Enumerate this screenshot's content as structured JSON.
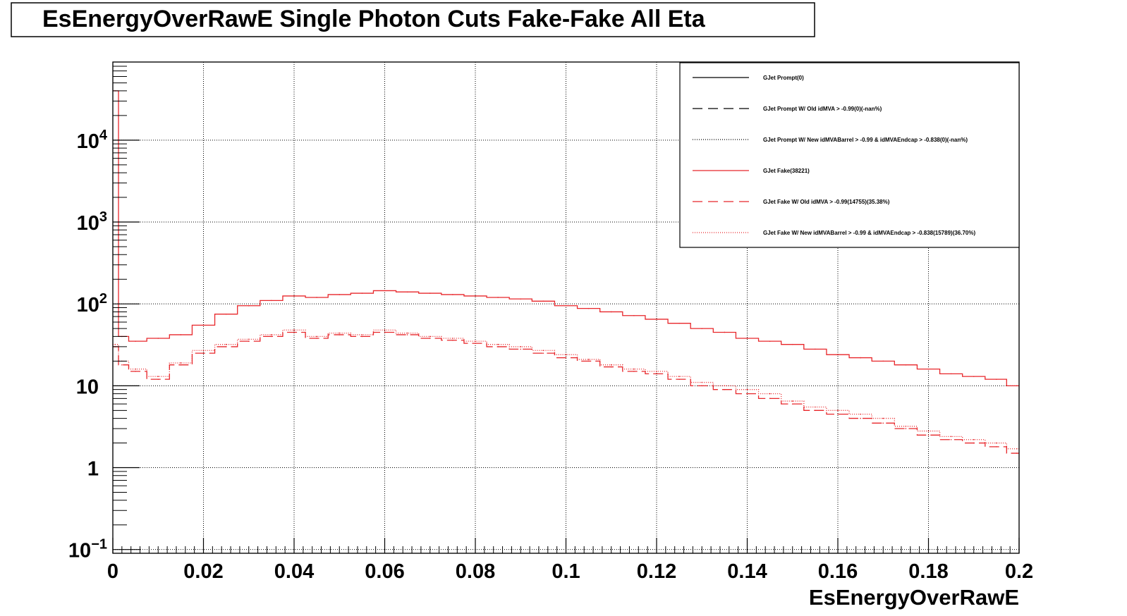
{
  "chart_data": {
    "type": "line",
    "title": "EsEnergyOverRawE Single Photon Cuts Fake-Fake All Eta",
    "xlabel": "EsEnergyOverRawE",
    "ylabel": "",
    "xlim": [
      0,
      0.2
    ],
    "ylim": [
      0.09,
      90000
    ],
    "y_scale": "log",
    "grid": true,
    "legend_position": "top-right",
    "x_tick_labels": [
      "0",
      "0.02",
      "0.04",
      "0.06",
      "0.08",
      "0.1",
      "0.12",
      "0.14",
      "0.16",
      "0.18",
      "0.2"
    ],
    "y_tick_labels": [
      {
        "value": 0.1,
        "base": "10",
        "exp": "−1"
      },
      {
        "value": 1,
        "base": "1",
        "exp": ""
      },
      {
        "value": 10,
        "base": "10",
        "exp": ""
      },
      {
        "value": 100,
        "base": "10",
        "exp": "2"
      },
      {
        "value": 1000,
        "base": "10",
        "exp": "3"
      },
      {
        "value": 10000,
        "base": "10",
        "exp": "4"
      }
    ],
    "colors": {
      "prompt": "#000000",
      "fake": "#e8262a"
    },
    "series": [
      {
        "name": "GJet Prompt(0)",
        "style": "solid",
        "color": "#000000",
        "x": [],
        "values": []
      },
      {
        "name": "GJet Prompt W/ Old idMVA > -0.99(0)(-nan%)",
        "style": "dashed",
        "color": "#000000",
        "x": [],
        "values": []
      },
      {
        "name": "GJet Prompt W/ New idMVABarrel > -0.99 & idMVAEndcap > -0.838(0)(-nan%)",
        "style": "dotted",
        "color": "#000000",
        "x": [],
        "values": []
      },
      {
        "name": "GJet Fake(38221)",
        "style": "solid",
        "color": "#e8262a",
        "x": [
          0.0005,
          0.002,
          0.005,
          0.01,
          0.015,
          0.02,
          0.025,
          0.03,
          0.035,
          0.04,
          0.045,
          0.05,
          0.055,
          0.06,
          0.065,
          0.07,
          0.075,
          0.08,
          0.085,
          0.09,
          0.095,
          0.1,
          0.105,
          0.11,
          0.115,
          0.12,
          0.125,
          0.13,
          0.135,
          0.14,
          0.145,
          0.15,
          0.155,
          0.16,
          0.165,
          0.17,
          0.175,
          0.18,
          0.185,
          0.19,
          0.195,
          0.1995
        ],
        "values": [
          40000,
          40,
          35,
          38,
          42,
          55,
          75,
          95,
          110,
          125,
          120,
          130,
          135,
          145,
          140,
          135,
          130,
          125,
          120,
          115,
          108,
          95,
          88,
          80,
          72,
          65,
          58,
          50,
          45,
          38,
          35,
          32,
          28,
          24,
          22,
          20,
          18,
          16,
          14,
          13,
          12,
          10
        ]
      },
      {
        "name": "GJet Fake W/ Old idMVA > -0.99(14755)(35.38%)",
        "style": "dashed",
        "color": "#e8262a",
        "x": [
          0.0005,
          0.002,
          0.005,
          0.01,
          0.015,
          0.02,
          0.025,
          0.03,
          0.035,
          0.04,
          0.045,
          0.05,
          0.055,
          0.06,
          0.065,
          0.07,
          0.075,
          0.08,
          0.085,
          0.09,
          0.095,
          0.1,
          0.105,
          0.11,
          0.115,
          0.12,
          0.125,
          0.13,
          0.135,
          0.14,
          0.145,
          0.15,
          0.155,
          0.16,
          0.165,
          0.17,
          0.175,
          0.18,
          0.185,
          0.19,
          0.195,
          0.1995
        ],
        "values": [
          30,
          18,
          15,
          12,
          18,
          25,
          30,
          35,
          40,
          45,
          38,
          42,
          40,
          45,
          42,
          38,
          36,
          33,
          30,
          28,
          25,
          22,
          20,
          17,
          15,
          14,
          12,
          10,
          9,
          8,
          7,
          6,
          5,
          4.5,
          4,
          3.5,
          3,
          2.5,
          2.2,
          2,
          1.8,
          1.5
        ]
      },
      {
        "name": "GJet Fake W/ New idMVABarrel > -0.99 & idMVAEndcap > -0.838(15789)(36.70%)",
        "style": "dotted",
        "color": "#e8262a",
        "x": [
          0.0005,
          0.002,
          0.005,
          0.01,
          0.015,
          0.02,
          0.025,
          0.03,
          0.035,
          0.04,
          0.045,
          0.05,
          0.055,
          0.06,
          0.065,
          0.07,
          0.075,
          0.08,
          0.085,
          0.09,
          0.095,
          0.1,
          0.105,
          0.11,
          0.115,
          0.12,
          0.125,
          0.13,
          0.135,
          0.14,
          0.145,
          0.15,
          0.155,
          0.16,
          0.165,
          0.17,
          0.175,
          0.18,
          0.185,
          0.19,
          0.195,
          0.1995
        ],
        "values": [
          32,
          20,
          16,
          13,
          19,
          27,
          32,
          37,
          42,
          48,
          40,
          44,
          42,
          48,
          44,
          40,
          38,
          35,
          32,
          30,
          27,
          24,
          21,
          18,
          16,
          15,
          13,
          11,
          10,
          9,
          8,
          6.5,
          5.5,
          5,
          4.5,
          4,
          3.2,
          2.8,
          2.4,
          2.2,
          2,
          1.7
        ]
      }
    ]
  }
}
